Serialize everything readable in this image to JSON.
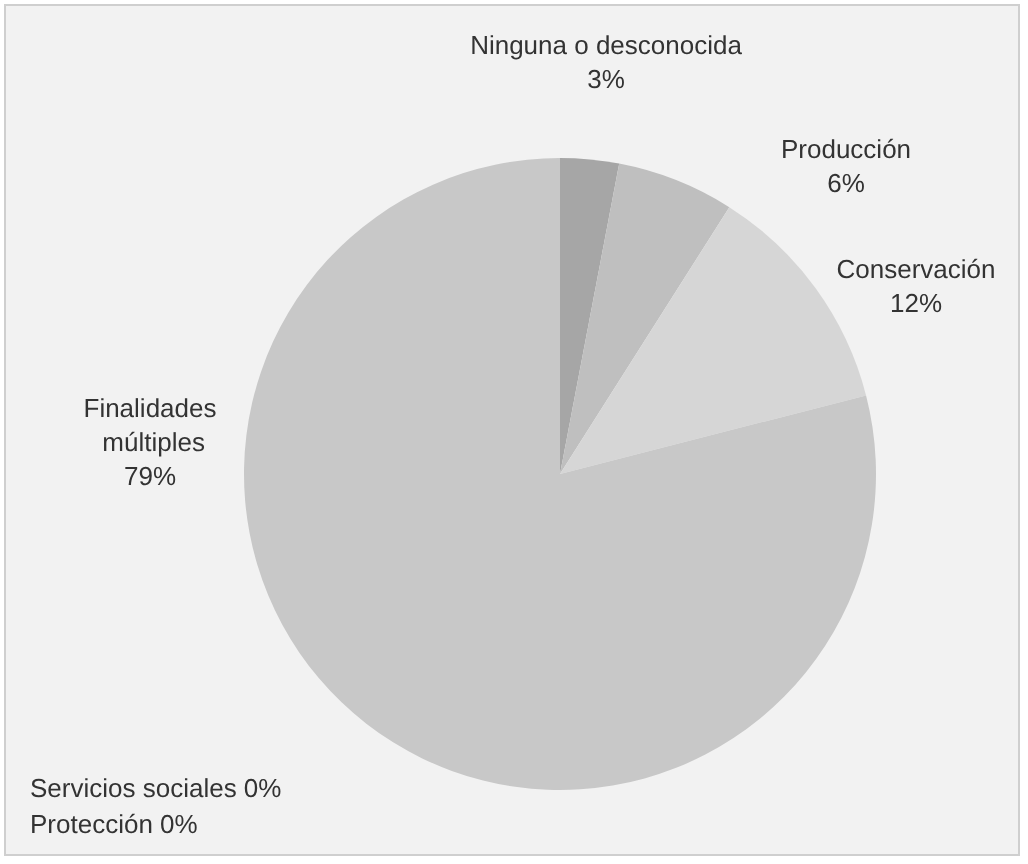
{
  "chart_data": {
    "type": "pie",
    "categories": [
      "Ninguna o desconocida",
      "Producción",
      "Conservación",
      "Finalidades múltiples",
      "Servicios sociales",
      "Protección"
    ],
    "values": [
      3,
      6,
      12,
      79,
      0,
      0
    ],
    "value_labels": [
      "3%",
      "6%",
      "12%",
      "79%",
      "0%",
      "0%"
    ],
    "colors": [
      "#a6a6a6",
      "#bfbfbf",
      "#d6d6d6",
      "#c8c8c8",
      "#8c8c8c",
      "#e0e0e0"
    ]
  }
}
